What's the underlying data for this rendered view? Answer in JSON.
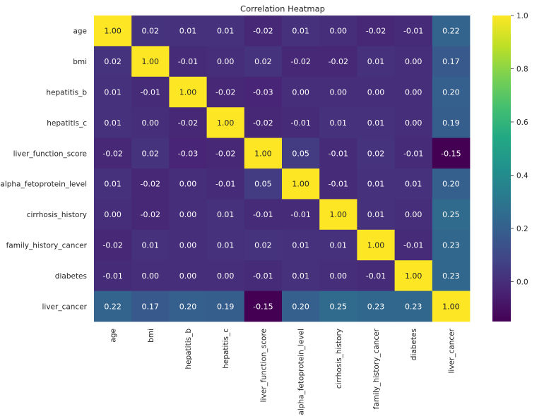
{
  "chart_data": {
    "type": "heatmap",
    "title": "Correlation Heatmap",
    "xlabel": "",
    "ylabel": "",
    "labels": [
      "age",
      "bmi",
      "hepatitis_b",
      "hepatitis_c",
      "liver_function_score",
      "alpha_fetoprotein_level",
      "cirrhosis_history",
      "family_history_cancer",
      "diabetes",
      "liver_cancer"
    ],
    "matrix": [
      [
        1.0,
        0.02,
        0.01,
        0.01,
        -0.02,
        0.01,
        0.0,
        -0.02,
        -0.01,
        0.22
      ],
      [
        0.02,
        1.0,
        -0.01,
        -0.0,
        0.02,
        -0.02,
        -0.02,
        0.01,
        0.0,
        0.17
      ],
      [
        0.01,
        -0.01,
        1.0,
        -0.02,
        -0.03,
        0.0,
        -0.0,
        0.0,
        0.0,
        0.2
      ],
      [
        0.01,
        -0.0,
        -0.02,
        1.0,
        -0.02,
        -0.01,
        0.01,
        0.01,
        0.0,
        0.19
      ],
      [
        -0.02,
        0.02,
        -0.03,
        -0.02,
        1.0,
        0.05,
        -0.01,
        0.02,
        -0.01,
        -0.15
      ],
      [
        0.01,
        -0.02,
        0.0,
        -0.01,
        0.05,
        1.0,
        -0.01,
        0.01,
        0.01,
        0.2
      ],
      [
        0.0,
        -0.02,
        -0.0,
        0.01,
        -0.01,
        -0.01,
        1.0,
        0.01,
        -0.0,
        0.25
      ],
      [
        -0.02,
        0.01,
        0.0,
        0.01,
        0.02,
        0.01,
        0.01,
        1.0,
        -0.01,
        0.23
      ],
      [
        -0.01,
        0.0,
        0.0,
        0.0,
        -0.01,
        0.01,
        -0.0,
        -0.01,
        1.0,
        0.23
      ],
      [
        0.22,
        0.17,
        0.2,
        0.19,
        -0.15,
        0.2,
        0.25,
        0.23,
        0.23,
        1.0
      ]
    ],
    "value_format": "0.00",
    "colormap": "viridis",
    "vmin": -0.15,
    "vmax": 1.0,
    "colorbar": {
      "ticks": [
        0.0,
        0.2,
        0.4,
        0.6,
        0.8,
        1.0
      ],
      "tick_labels": [
        "0.0",
        "0.2",
        "0.4",
        "0.6",
        "0.8",
        "1.0"
      ],
      "placement": "right"
    },
    "grid": false
  }
}
